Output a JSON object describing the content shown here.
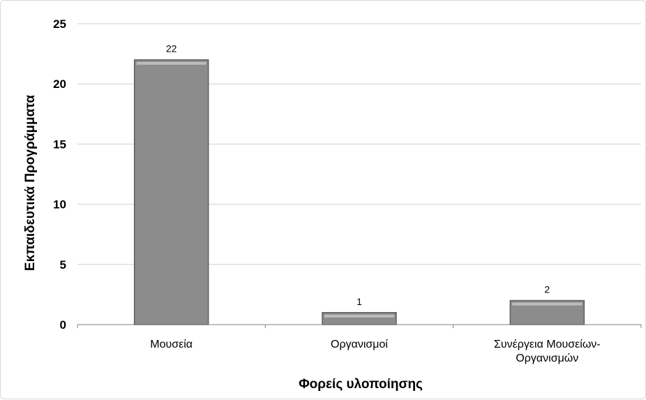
{
  "chart_data": {
    "type": "bar",
    "categories": [
      "Μουσεία",
      "Οργανισμοί",
      "Συνέργεια Μουσείων-Οργανισμών"
    ],
    "category_lines": [
      [
        "Μουσεία"
      ],
      [
        "Οργανισμοί"
      ],
      [
        "Συνέργεια Μουσείων-",
        "Οργανισμών"
      ]
    ],
    "values": [
      22,
      1,
      2
    ],
    "data_labels": [
      "22",
      "1",
      "2"
    ],
    "xlabel": "Φορείς υλοποίησης",
    "ylabel": "Εκπαιδευτικά Προγράμματα",
    "ylim": [
      0,
      25
    ],
    "yticks": [
      "0",
      "5",
      "10",
      "15",
      "20",
      "25"
    ],
    "ytick_values": [
      0,
      5,
      10,
      15,
      20,
      25
    ],
    "grid": true,
    "legend": "none",
    "colors": {
      "bar_fill": "#8c8c8c",
      "bar_edge": "#5e5e5e",
      "bar_highlight": "#bdbdbd",
      "grid": "#d0d0d0",
      "axis": "#808080"
    }
  }
}
